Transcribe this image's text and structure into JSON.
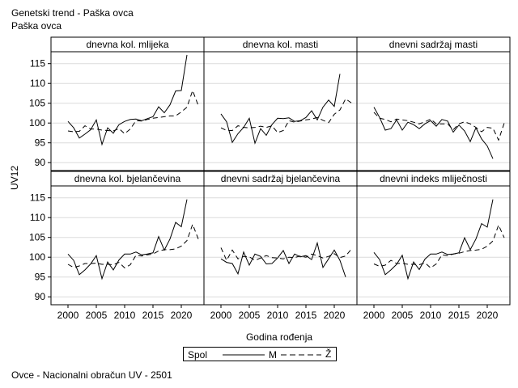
{
  "title": "Genetski trend - Paška ovca",
  "subtitle": "Paška ovca",
  "footnote": "Ovce - Nacionalni obračun UV - 2501",
  "legend": {
    "title": "Spol",
    "m_label": "M",
    "z_label": "Ž"
  },
  "chart_data": {
    "type": "line",
    "xlabel": "Godina rođenja",
    "ylabel": "UV12",
    "xlim": [
      1997,
      2024
    ],
    "ylim": [
      88,
      118
    ],
    "xticks": [
      "2000",
      "2005",
      "2010",
      "2015",
      "2020"
    ],
    "yticks": [
      "90",
      "95",
      "100",
      "105",
      "110",
      "115"
    ],
    "series_names": [
      "M",
      "Ž"
    ],
    "x": [
      2000,
      2001,
      2002,
      2003,
      2004,
      2005,
      2006,
      2007,
      2008,
      2009,
      2010,
      2011,
      2012,
      2013,
      2014,
      2015,
      2016,
      2017,
      2018,
      2019,
      2020,
      2021,
      2022,
      2023
    ],
    "panels": [
      {
        "title": "dnevna kol. mlijeka",
        "M": [
          100.4,
          98.8,
          96.2,
          97.2,
          98.3,
          100.8,
          94.6,
          98.8,
          97.4,
          99.6,
          100.4,
          100.9,
          101.0,
          100.6,
          101.1,
          101.6,
          104.1,
          102.6,
          104.6,
          108.1,
          108.2,
          117.2,
          null,
          null
        ],
        "Z": [
          98.0,
          97.8,
          97.9,
          99.3,
          98.5,
          98.5,
          98.2,
          98.1,
          98.0,
          98.6,
          97.3,
          98.5,
          100.6,
          100.5,
          100.9,
          101.2,
          101.4,
          101.6,
          101.8,
          101.8,
          102.8,
          104.0,
          108.2,
          104.4
        ]
      },
      {
        "title": "dnevna kol. masti",
        "M": [
          102.3,
          100.3,
          95.1,
          97.3,
          98.9,
          101.2,
          94.9,
          98.6,
          96.9,
          99.6,
          101.2,
          101.1,
          101.3,
          100.4,
          100.6,
          101.4,
          103.1,
          100.8,
          104.0,
          105.8,
          104.2,
          112.4,
          null,
          null
        ],
        "Z": [
          98.8,
          98.1,
          98.1,
          99.3,
          98.9,
          98.8,
          98.9,
          99.2,
          98.9,
          99.3,
          97.6,
          98.1,
          100.6,
          100.2,
          100.5,
          100.8,
          101.0,
          101.4,
          100.7,
          100.1,
          102.2,
          103.3,
          106.1,
          105.1
        ]
      },
      {
        "title": "dnevni sadržaj masti",
        "M": [
          104.0,
          101.4,
          98.2,
          98.6,
          100.8,
          98.2,
          100.2,
          99.6,
          98.6,
          99.8,
          100.6,
          99.2,
          100.9,
          100.5,
          97.7,
          99.5,
          98.0,
          95.3,
          98.8,
          96.0,
          94.2,
          91.0,
          null,
          null
        ],
        "Z": [
          102.7,
          101.2,
          100.9,
          100.3,
          101.0,
          100.8,
          100.6,
          100.2,
          99.8,
          100.3,
          101.0,
          99.8,
          99.8,
          99.8,
          98.3,
          99.8,
          100.3,
          99.8,
          98.9,
          97.8,
          98.9,
          98.7,
          95.7,
          100.0
        ]
      },
      {
        "title": "dnevna kol. bjelančevina",
        "M": [
          100.8,
          99.2,
          95.6,
          96.8,
          98.3,
          100.4,
          94.6,
          98.8,
          96.8,
          99.3,
          100.8,
          100.8,
          101.3,
          100.6,
          100.8,
          101.1,
          105.2,
          101.8,
          104.6,
          108.8,
          107.7,
          114.6,
          null,
          null
        ],
        "Z": [
          98.2,
          97.4,
          97.8,
          98.4,
          98.4,
          98.5,
          98.2,
          98.2,
          98.1,
          98.7,
          97.3,
          98.1,
          100.5,
          100.3,
          100.6,
          100.8,
          101.6,
          101.9,
          101.9,
          102.1,
          102.8,
          104.2,
          108.3,
          104.6
        ]
      },
      {
        "title": "dnevni sadržaj bjelančevina",
        "M": [
          99.6,
          98.7,
          98.4,
          95.8,
          101.3,
          98.0,
          100.8,
          100.2,
          98.3,
          98.4,
          99.8,
          101.7,
          98.4,
          100.8,
          100.1,
          100.4,
          99.4,
          103.6,
          97.4,
          99.6,
          101.8,
          99.2,
          95.0,
          null
        ],
        "Z": [
          102.4,
          99.2,
          101.8,
          99.6,
          100.2,
          100.1,
          99.2,
          99.8,
          100.4,
          99.9,
          99.8,
          99.6,
          100.0,
          99.9,
          100.3,
          100.0,
          100.8,
          100.4,
          99.8,
          100.2,
          100.9,
          99.9,
          100.3,
          102.0
        ]
      },
      {
        "title": "dnevni indeks mliječnosti",
        "M": [
          101.2,
          99.4,
          95.6,
          96.8,
          98.2,
          100.5,
          94.6,
          98.8,
          96.9,
          99.5,
          100.8,
          100.8,
          101.3,
          100.7,
          100.8,
          101.1,
          104.9,
          101.9,
          104.6,
          108.5,
          107.6,
          114.6,
          null,
          null
        ],
        "Z": [
          98.3,
          97.7,
          98.0,
          99.2,
          98.4,
          98.5,
          98.2,
          98.2,
          98.1,
          98.6,
          97.3,
          98.3,
          100.6,
          100.4,
          100.8,
          101.0,
          101.4,
          101.7,
          101.8,
          102.0,
          102.8,
          104.1,
          108.1,
          104.9
        ]
      }
    ]
  }
}
